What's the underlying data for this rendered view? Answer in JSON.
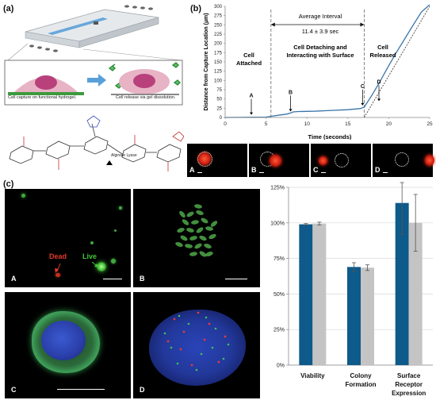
{
  "panel_a": {
    "label": "(a)",
    "caption_capture": "Cell capture on functional hydrogel.",
    "caption_release": "Cell release via gel dissolution.",
    "lyase_label": "Alginate Lyase"
  },
  "panel_b": {
    "label": "(b)",
    "chart_data": {
      "type": "line",
      "ylabel": "Distance from Capture Location (µm)",
      "xlabel": "Time (seconds)",
      "xlim": [
        0,
        25
      ],
      "ylim": [
        0,
        300
      ],
      "xticks": [
        0,
        5,
        10,
        15,
        20,
        25
      ],
      "yticks": [
        0,
        25,
        50,
        75,
        100,
        125,
        150,
        175,
        200,
        225,
        250,
        275,
        300
      ],
      "phases": [
        "Cell Attached",
        "Cell Detaching and Interacting with Surface",
        "Cell Released"
      ],
      "interval_text": "Average Interval",
      "interval_value": "11.4 ± 3.9 sec",
      "dashed_lines_x": [
        5.6,
        17.0
      ],
      "markers": [
        {
          "label": "A",
          "x": 3.2,
          "y": 3
        },
        {
          "label": "B",
          "x": 8.0,
          "y": 12
        },
        {
          "label": "C",
          "x": 16.8,
          "y": 28
        },
        {
          "label": "D",
          "x": 18.8,
          "y": 40
        }
      ],
      "series": [
        {
          "x": [
            0,
            5,
            5.6,
            6.5,
            7.5,
            8,
            8.3,
            9,
            11,
            13,
            15,
            16.5,
            17,
            18,
            19,
            20,
            21,
            22,
            23,
            24,
            25
          ],
          "y": [
            0,
            1,
            3,
            6,
            9,
            12,
            15,
            16,
            17,
            19,
            21,
            24,
            28,
            62,
            100,
            140,
            178,
            214,
            250,
            285,
            320
          ],
          "color": "#3a74a8"
        }
      ],
      "fit_line": {
        "x": [
          17,
          25
        ],
        "y": [
          0,
          320
        ],
        "color": "#555555"
      }
    },
    "frame_labels": [
      "A",
      "B",
      "C",
      "D"
    ]
  },
  "panel_c": {
    "label": "(c)",
    "image_labels": [
      "A",
      "B",
      "C",
      "D"
    ],
    "dead_label": "Dead",
    "live_label": "Live",
    "chart_data": {
      "type": "bar",
      "categories": [
        "Viability",
        "Colony Formation",
        "Surface Receptor Expression"
      ],
      "category_lines": [
        [
          "Viability"
        ],
        [
          "Colony",
          "Formation"
        ],
        [
          "Surface",
          "Receptor",
          "Expression"
        ]
      ],
      "ylim": [
        0,
        125
      ],
      "yticks": [
        "0%",
        "25%",
        "50%",
        "75%",
        "100%",
        "125%"
      ],
      "series": [
        {
          "values": [
            99,
            69,
            114
          ],
          "errors": [
            0.5,
            3,
            22
          ],
          "color": "#0e5a8a"
        },
        {
          "values": [
            99.5,
            68.5,
            100
          ],
          "errors": [
            1,
            2,
            20
          ],
          "color": "#c4c4c4"
        }
      ]
    }
  }
}
